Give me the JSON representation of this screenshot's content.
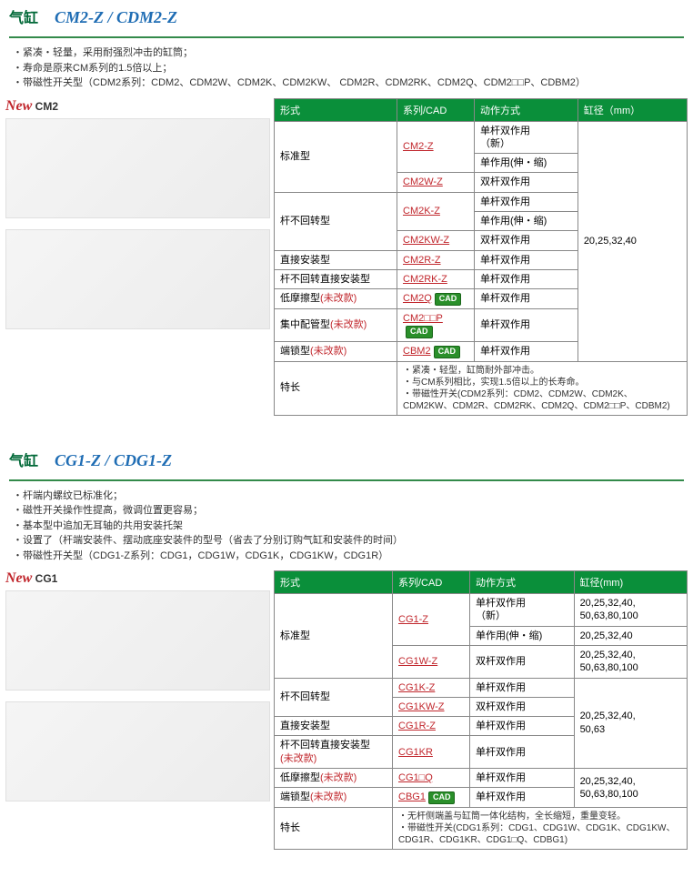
{
  "sections": [
    {
      "titleCn": "气缸",
      "titleEn": "CM2-Z / CDM2-Z",
      "bullets": [
        "・紧凑・轻量，采用耐强烈冲击的缸筒；",
        "・寿命是原来CM系列的1.5倍以上；",
        "・带磁性开关型（CDM2系列：CDM2、CDM2W、CDM2K、CDM2KW、 CDM2R、CDM2RK、CDM2Q、CDM2□□P、CDBM2）"
      ],
      "newLabel": "New",
      "newSeries": "CM2",
      "headers": {
        "form": "形式",
        "series": "系列/CAD",
        "action": "动作方式",
        "bore": "缸径（mm）"
      },
      "boreAll": "20,25,32,40",
      "rows": [
        {
          "form": "标准型",
          "series": "CM2-Z",
          "action": "单杆双作用\n（新）",
          "formRowspan": 3,
          "cad": false
        },
        {
          "series": "",
          "action": "单作用(伸・缩)",
          "cad": false,
          "noSeries": true
        },
        {
          "series": "CM2W-Z",
          "action": "双杆双作用",
          "cad": false
        },
        {
          "form": "杆不回转型",
          "series": "CM2K-Z",
          "action": "单杆双作用",
          "formRowspan": 3,
          "cad": false
        },
        {
          "series": "",
          "action": "单作用(伸・缩)",
          "cad": false,
          "noSeries": true
        },
        {
          "series": "CM2KW-Z",
          "action": "双杆双作用",
          "cad": false
        },
        {
          "form": "直接安装型",
          "series": "CM2R-Z",
          "action": "单杆双作用",
          "cad": false
        },
        {
          "form": "杆不回转直接安装型",
          "series": "CM2RK-Z",
          "action": "单杆双作用",
          "cad": false
        },
        {
          "form": "低摩擦型(未改款)",
          "series": "CM2Q",
          "action": "单杆双作用",
          "cad": true,
          "nomod": true
        },
        {
          "form": "集中配管型(未改款)",
          "series": "CM2□□P",
          "action": "单杆双作用",
          "cad": true,
          "nomod": true
        },
        {
          "form": "端锁型(未改款)",
          "series": "CBM2",
          "action": "单杆双作用",
          "cad": true,
          "nomod": true
        }
      ],
      "featureLabel": "特长",
      "featureText": "・紧凑・轻型，缸筒耐外部冲击。\n・与CM系列相比，实现1.5倍以上的长寿命。\n・带磁性开关(CDM2系列：CDM2、CDM2W、CDM2K、CDM2KW、CDM2R、CDM2RK、CDM2Q、CDM2□□P、CDBM2)"
    },
    {
      "titleCn": "气缸",
      "titleEn": "CG1-Z / CDG1-Z",
      "bullets": [
        "・杆端内螺纹已标准化；",
        "・磁性开关操作性提高，微调位置更容易；",
        "・基本型中追加无耳轴的共用安装托架",
        "・设置了（杆端安装件、摆动底座安装件的型号（省去了分别订购气缸和安装件的时间）",
        "・带磁性开关型（CDG1-Z系列：CDG1，CDG1W，CDG1K，CDG1KW，CDG1R）"
      ],
      "newLabel": "New",
      "newSeries": "CG1",
      "headers": {
        "form": "形式",
        "series": "系列/CAD",
        "action": "动作方式",
        "bore": "缸径(mm)"
      },
      "rows2": [
        {
          "form": "标准型",
          "series": "CG1-Z",
          "action": "单杆双作用\n（新）",
          "bore": "20,25,32,40,\n50,63,80,100",
          "formRowspan": 3,
          "cad": false
        },
        {
          "series": "",
          "action": "单作用(伸・缩)",
          "bore": "20,25,32,40",
          "cad": false,
          "noSeries": true
        },
        {
          "series": "CG1W-Z",
          "action": "双杆双作用",
          "bore": "20,25,32,40,\n50,63,80,100",
          "cad": false
        },
        {
          "form": "杆不回转型",
          "series": "CG1K-Z",
          "action": "单杆双作用",
          "formRowspan": 2,
          "boreRowspan": 4,
          "bore": "20,25,32,40,\n50,63",
          "cad": false
        },
        {
          "series": "CG1KW-Z",
          "action": "双杆双作用",
          "cad": false
        },
        {
          "form": "直接安装型",
          "series": "CG1R-Z",
          "action": "单杆双作用",
          "cad": false
        },
        {
          "form": "杆不回转直接安装型\n(未改款)",
          "series": "CG1KR",
          "action": "单杆双作用",
          "cad": false,
          "nomod": true
        },
        {
          "form": "低摩擦型(未改款)",
          "series": "CG1□Q",
          "action": "单杆双作用",
          "boreRowspan": 2,
          "bore": "20,25,32,40,\n50,63,80,100",
          "cad": false,
          "nomod": true
        },
        {
          "form": "端锁型(未改款)",
          "series": "CBG1",
          "action": "单杆双作用",
          "cad": true,
          "nomod": true
        }
      ],
      "featureLabel": "特长",
      "featureText": "・无杆侧端盖与缸筒一体化结构，全长缩短，重量变轻。\n・带磁性开关(CDG1系列：CDG1、CDG1W、CDG1K、CDG1KW、CDG1R、CDG1KR、CDG1□Q、CDBG1)"
    }
  ],
  "cadBadge": "CAD"
}
